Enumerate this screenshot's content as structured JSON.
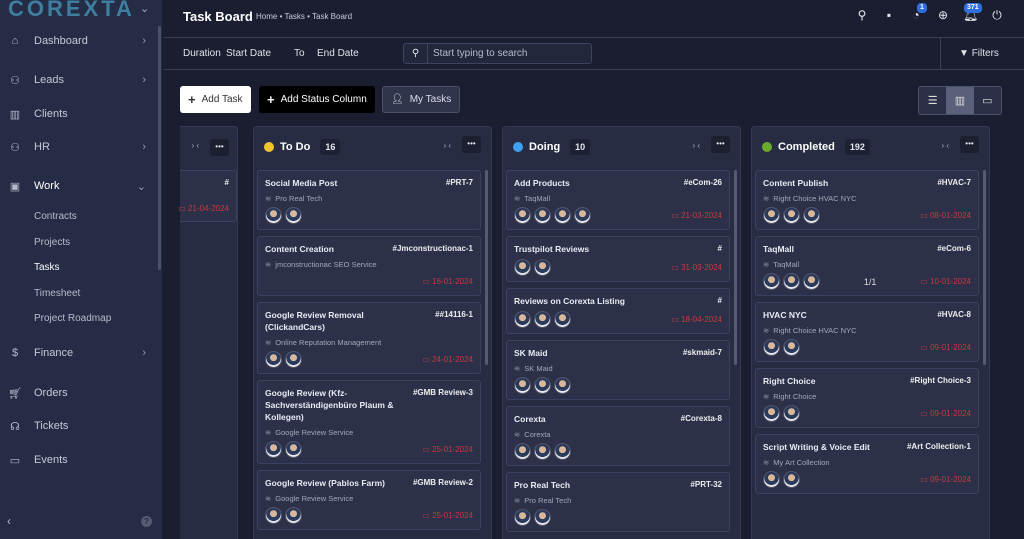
{
  "sidebar": {
    "logo": "COREXTA",
    "items": [
      {
        "label": "Dashboard",
        "icon": "home-icon",
        "arrow": true
      },
      {
        "label": "Leads",
        "icon": "users-icon",
        "arrow": true
      },
      {
        "label": "Clients",
        "icon": "building-icon",
        "arrow": false
      },
      {
        "label": "HR",
        "icon": "people-icon",
        "arrow": true
      },
      {
        "label": "Work",
        "icon": "briefcase-icon",
        "arrow": true
      },
      {
        "label": "Finance",
        "icon": "dollar-icon",
        "arrow": true
      },
      {
        "label": "Orders",
        "icon": "cart-icon",
        "arrow": false
      },
      {
        "label": "Tickets",
        "icon": "headset-icon",
        "arrow": false
      },
      {
        "label": "Events",
        "icon": "calendar-icon",
        "arrow": false
      }
    ],
    "work_sub": [
      "Contracts",
      "Projects",
      "Tasks",
      "Timesheet",
      "Project Roadmap"
    ]
  },
  "header": {
    "title": "Task Board",
    "breadcrumb": "Home • Tasks • Task Board",
    "badge_clock": "1",
    "badge_bell": "371"
  },
  "filters": {
    "duration": "Duration",
    "start": "Start Date",
    "to": "To",
    "end": "End Date",
    "search_placeholder": "Start typing to search",
    "filters_label": "Filters"
  },
  "toolbar": {
    "add_task": "Add Task",
    "add_status": "Add Status Column",
    "my_tasks": "My Tasks"
  },
  "partial": {
    "id": "#",
    "date": "21-04-2024"
  },
  "columns": [
    {
      "name": "To Do",
      "count": "16",
      "color": "#f2c230",
      "cards": [
        {
          "title": "Social Media Post",
          "id": "#PRT-7",
          "project": "Pro Real Tech",
          "avatars": 2,
          "date": ""
        },
        {
          "title": "Content Creation",
          "id": "#Jmconstructionac-1",
          "project": "jmconstructionac SEO Service",
          "avatars": 0,
          "date": "16-01-2024"
        },
        {
          "title": "Google Review Removal (ClickandCars)",
          "id": "##14116-1",
          "project": "Online Reputation Management",
          "avatars": 2,
          "date": "24-01-2024"
        },
        {
          "title": "Google Review (Kfz-Sachverständigenbüro Plaum & Kollegen)",
          "id": "#GMB Review-3",
          "project": "Google Review Service",
          "avatars": 2,
          "date": "25-01-2024"
        },
        {
          "title": "Google Review (Pablos Farm)",
          "id": "#GMB Review-2",
          "project": "Google Review Service",
          "avatars": 2,
          "date": "25-01-2024"
        }
      ]
    },
    {
      "name": "Doing",
      "count": "10",
      "color": "#3ea0f0",
      "cards": [
        {
          "title": "Add Products",
          "id": "#eCom-26",
          "project": "TaqMall",
          "avatars": 4,
          "date": "21-03-2024"
        },
        {
          "title": "Trustpilot Reviews",
          "id": "#",
          "project": "",
          "avatars": 2,
          "date": "31-03-2024"
        },
        {
          "title": "Reviews on Corexta Listing",
          "id": "#",
          "project": "",
          "avatars": 3,
          "date": "18-04-2024"
        },
        {
          "title": "SK Maid",
          "id": "#skmaid-7",
          "project": "SK Maid",
          "avatars": 3,
          "date": ""
        },
        {
          "title": "Corexta",
          "id": "#Corexta-8",
          "project": "Corexta",
          "avatars": 3,
          "date": ""
        },
        {
          "title": "Pro Real Tech",
          "id": "#PRT-32",
          "project": "Pro Real Tech",
          "avatars": 2,
          "date": ""
        }
      ]
    },
    {
      "name": "Completed",
      "count": "192",
      "color": "#6aab2e",
      "cards": [
        {
          "title": "Content Publish",
          "id": "#HVAC-7",
          "project": "Right Choice HVAC NYC",
          "avatars": 3,
          "date": "08-01-2024"
        },
        {
          "title": "TaqMall",
          "id": "#eCom-6",
          "project": "TaqMall",
          "avatars": 3,
          "date": "10-01-2024",
          "subtasks": "1/1"
        },
        {
          "title": "HVAC NYC",
          "id": "#HVAC-8",
          "project": "Right Choice HVAC NYC",
          "avatars": 2,
          "date": "09-01-2024"
        },
        {
          "title": "Right Choice",
          "id": "#Right Choice-3",
          "project": "Right Choice",
          "avatars": 2,
          "date": "09-01-2024"
        },
        {
          "title": "Script Writing & Voice Edit",
          "id": "#Art Collection-1",
          "project": "My Art Collection",
          "avatars": 2,
          "date": "09-01-2024"
        }
      ]
    }
  ]
}
